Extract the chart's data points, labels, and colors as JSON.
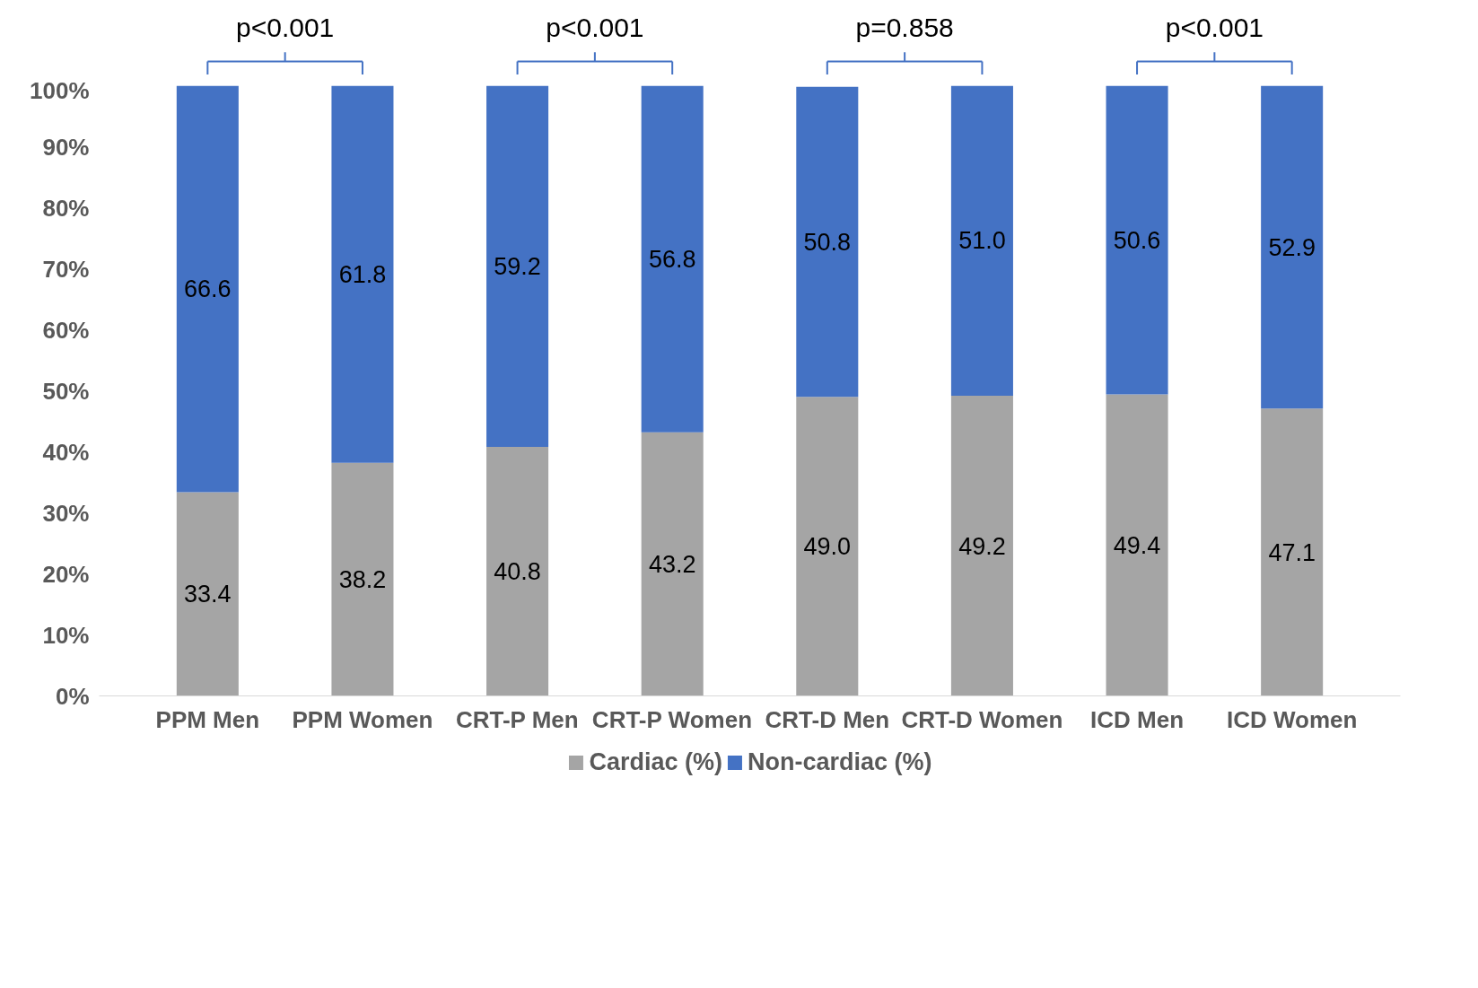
{
  "chart_data": {
    "type": "bar",
    "stacked": true,
    "categories": [
      "PPM Men",
      "PPM Women",
      "CRT-P Men",
      "CRT-P Women",
      "CRT-D Men",
      "CRT-D Women",
      "ICD Men",
      "ICD Women"
    ],
    "series": [
      {
        "name": "Cardiac (%)",
        "color": "#a5a5a5",
        "values": [
          33.4,
          38.2,
          40.8,
          43.2,
          49.0,
          49.2,
          49.4,
          47.1
        ],
        "value_labels": [
          "33.4",
          "38.2",
          "40.8",
          "43.2",
          "49.0",
          "49.2",
          "49.4",
          "47.1"
        ]
      },
      {
        "name": "Non-cardiac (%)",
        "color": "#4472c4",
        "values": [
          66.6,
          61.8,
          59.2,
          56.8,
          50.8,
          51.0,
          50.6,
          52.9
        ],
        "value_labels": [
          "66.6",
          "61.8",
          "59.2",
          "56.8",
          "50.8",
          "51.0",
          "50.6",
          "52.9"
        ]
      }
    ],
    "ylim": [
      0,
      100
    ],
    "yticks": [
      {
        "value": 0,
        "label": "0%"
      },
      {
        "value": 10,
        "label": "10%"
      },
      {
        "value": 20,
        "label": "20%"
      },
      {
        "value": 30,
        "label": "30%"
      },
      {
        "value": 40,
        "label": "40%"
      },
      {
        "value": 50,
        "label": "50%"
      },
      {
        "value": 60,
        "label": "60%"
      },
      {
        "value": 70,
        "label": "70%"
      },
      {
        "value": 80,
        "label": "80%"
      },
      {
        "value": 90,
        "label": "90%"
      },
      {
        "value": 100,
        "label": "100%"
      }
    ],
    "annotations": [
      "p<0.001",
      "p<0.001",
      "p=0.858",
      "p<0.001"
    ],
    "data_labels": true,
    "grid": false,
    "legend": "bottom"
  }
}
